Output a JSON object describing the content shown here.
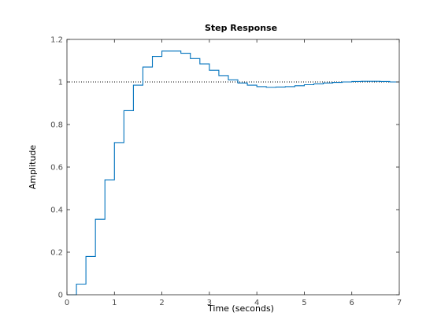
{
  "chart_data": {
    "type": "line",
    "title": "Step Response",
    "xlabel": "Time (seconds)",
    "ylabel": "Amplitude",
    "xlim": [
      0,
      7
    ],
    "ylim": [
      0,
      1.2
    ],
    "x_ticks": [
      0,
      1,
      2,
      3,
      4,
      5,
      6,
      7
    ],
    "x_tick_labels": [
      "0",
      "1",
      "2",
      "3",
      "4",
      "5",
      "6",
      "7"
    ],
    "y_ticks": [
      0,
      0.2,
      0.4,
      0.6,
      0.8,
      1,
      1.2
    ],
    "y_tick_labels": [
      "0",
      "0.2",
      "0.4",
      "0.6",
      "0.8",
      "1",
      "1.2"
    ],
    "grid": false,
    "sample_time": 0.2,
    "reference_value": 1,
    "series": [
      {
        "style": "stairs",
        "color": "#0072BD",
        "x": [
          0,
          0.2,
          0.4,
          0.6,
          0.8,
          1.0,
          1.2,
          1.4,
          1.6,
          1.8,
          2.0,
          2.2,
          2.4,
          2.6,
          2.8,
          3.0,
          3.2,
          3.4,
          3.6,
          3.8,
          4.0,
          4.2,
          4.4,
          4.6,
          4.8,
          5.0,
          5.2,
          5.4,
          5.6,
          5.8,
          6.0,
          6.2,
          6.4,
          6.6,
          6.8
        ],
        "values": [
          0,
          0.05,
          0.18,
          0.355,
          0.54,
          0.715,
          0.865,
          0.985,
          1.07,
          1.12,
          1.145,
          1.145,
          1.135,
          1.11,
          1.085,
          1.055,
          1.03,
          1.01,
          0.995,
          0.985,
          0.978,
          0.975,
          0.976,
          0.978,
          0.982,
          0.987,
          0.991,
          0.995,
          0.998,
          1.0,
          1.002,
          1.003,
          1.003,
          1.002,
          1.0
        ]
      }
    ],
    "reference_line": {
      "style": "dotted",
      "color": "#000000"
    }
  }
}
